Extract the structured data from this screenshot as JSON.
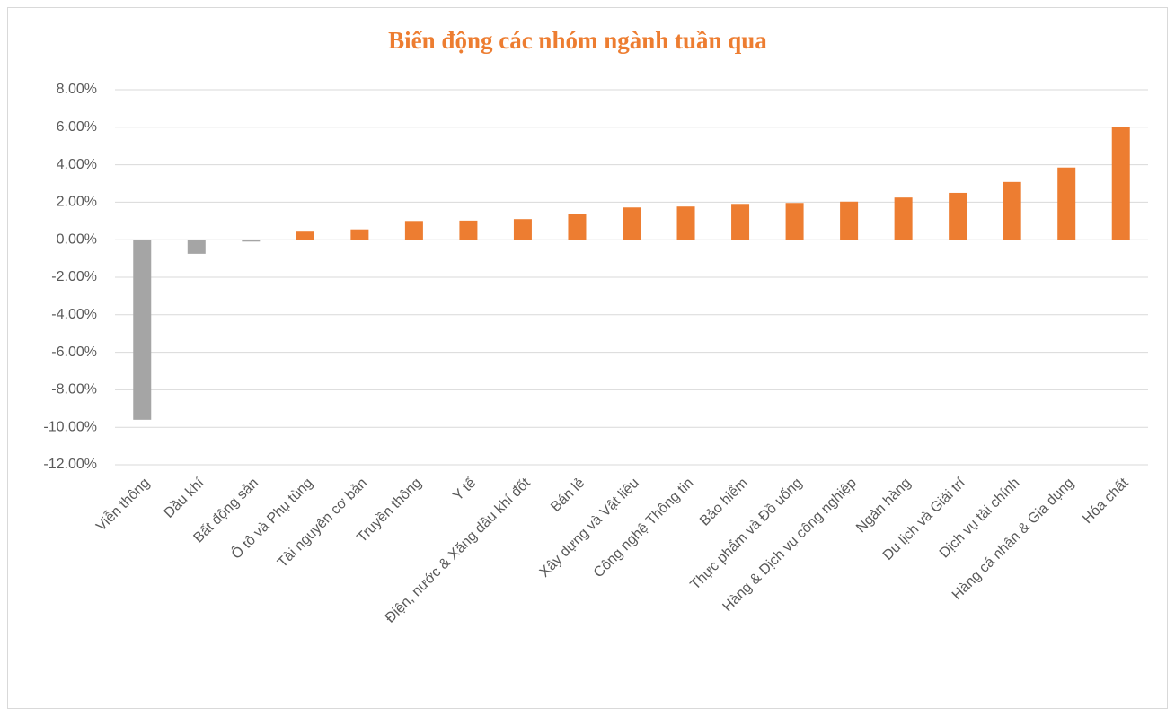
{
  "chart_data": {
    "type": "bar",
    "title": "Biến động các nhóm ngành tuần qua",
    "categories": [
      "Viễn thông",
      "Dầu khí",
      "Bất động sản",
      "Ô tô và Phụ tùng",
      "Tài nguyên cơ bản",
      "Truyền thông",
      "Y tế",
      "Điện, nước & Xăng dầu khí đốt",
      "Bán lẻ",
      "Xây dựng và Vật liệu",
      "Công nghệ Thông tin",
      "Bảo hiểm",
      "Thực phẩm và Đồ uống",
      "Hàng & Dịch vụ công nghiệp",
      "Ngân hàng",
      "Du lịch và Giải trí",
      "Dịch vụ tài chính",
      "Hàng cá nhân & Gia dụng",
      "Hóa chất"
    ],
    "values": [
      -9.6,
      -0.75,
      -0.1,
      0.43,
      0.55,
      1.0,
      1.02,
      1.1,
      1.39,
      1.72,
      1.77,
      1.91,
      1.96,
      2.03,
      2.25,
      2.5,
      3.08,
      3.85,
      6.02
    ],
    "color_positive": "#ed7d31",
    "color_negative": "#a5a5a5",
    "ylim": [
      -12,
      8
    ],
    "yticks": [
      {
        "value": -12,
        "label": "-12.00%"
      },
      {
        "value": -10,
        "label": "-10.00%"
      },
      {
        "value": -8,
        "label": "-8.00%"
      },
      {
        "value": -6,
        "label": "-6.00%"
      },
      {
        "value": -4,
        "label": "-4.00%"
      },
      {
        "value": -2,
        "label": "-2.00%"
      },
      {
        "value": 0,
        "label": "0.00%"
      },
      {
        "value": 2,
        "label": "2.00%"
      },
      {
        "value": 4,
        "label": "4.00%"
      },
      {
        "value": 6,
        "label": "6.00%"
      },
      {
        "value": 8,
        "label": "8.00%"
      }
    ],
    "grid": true
  }
}
